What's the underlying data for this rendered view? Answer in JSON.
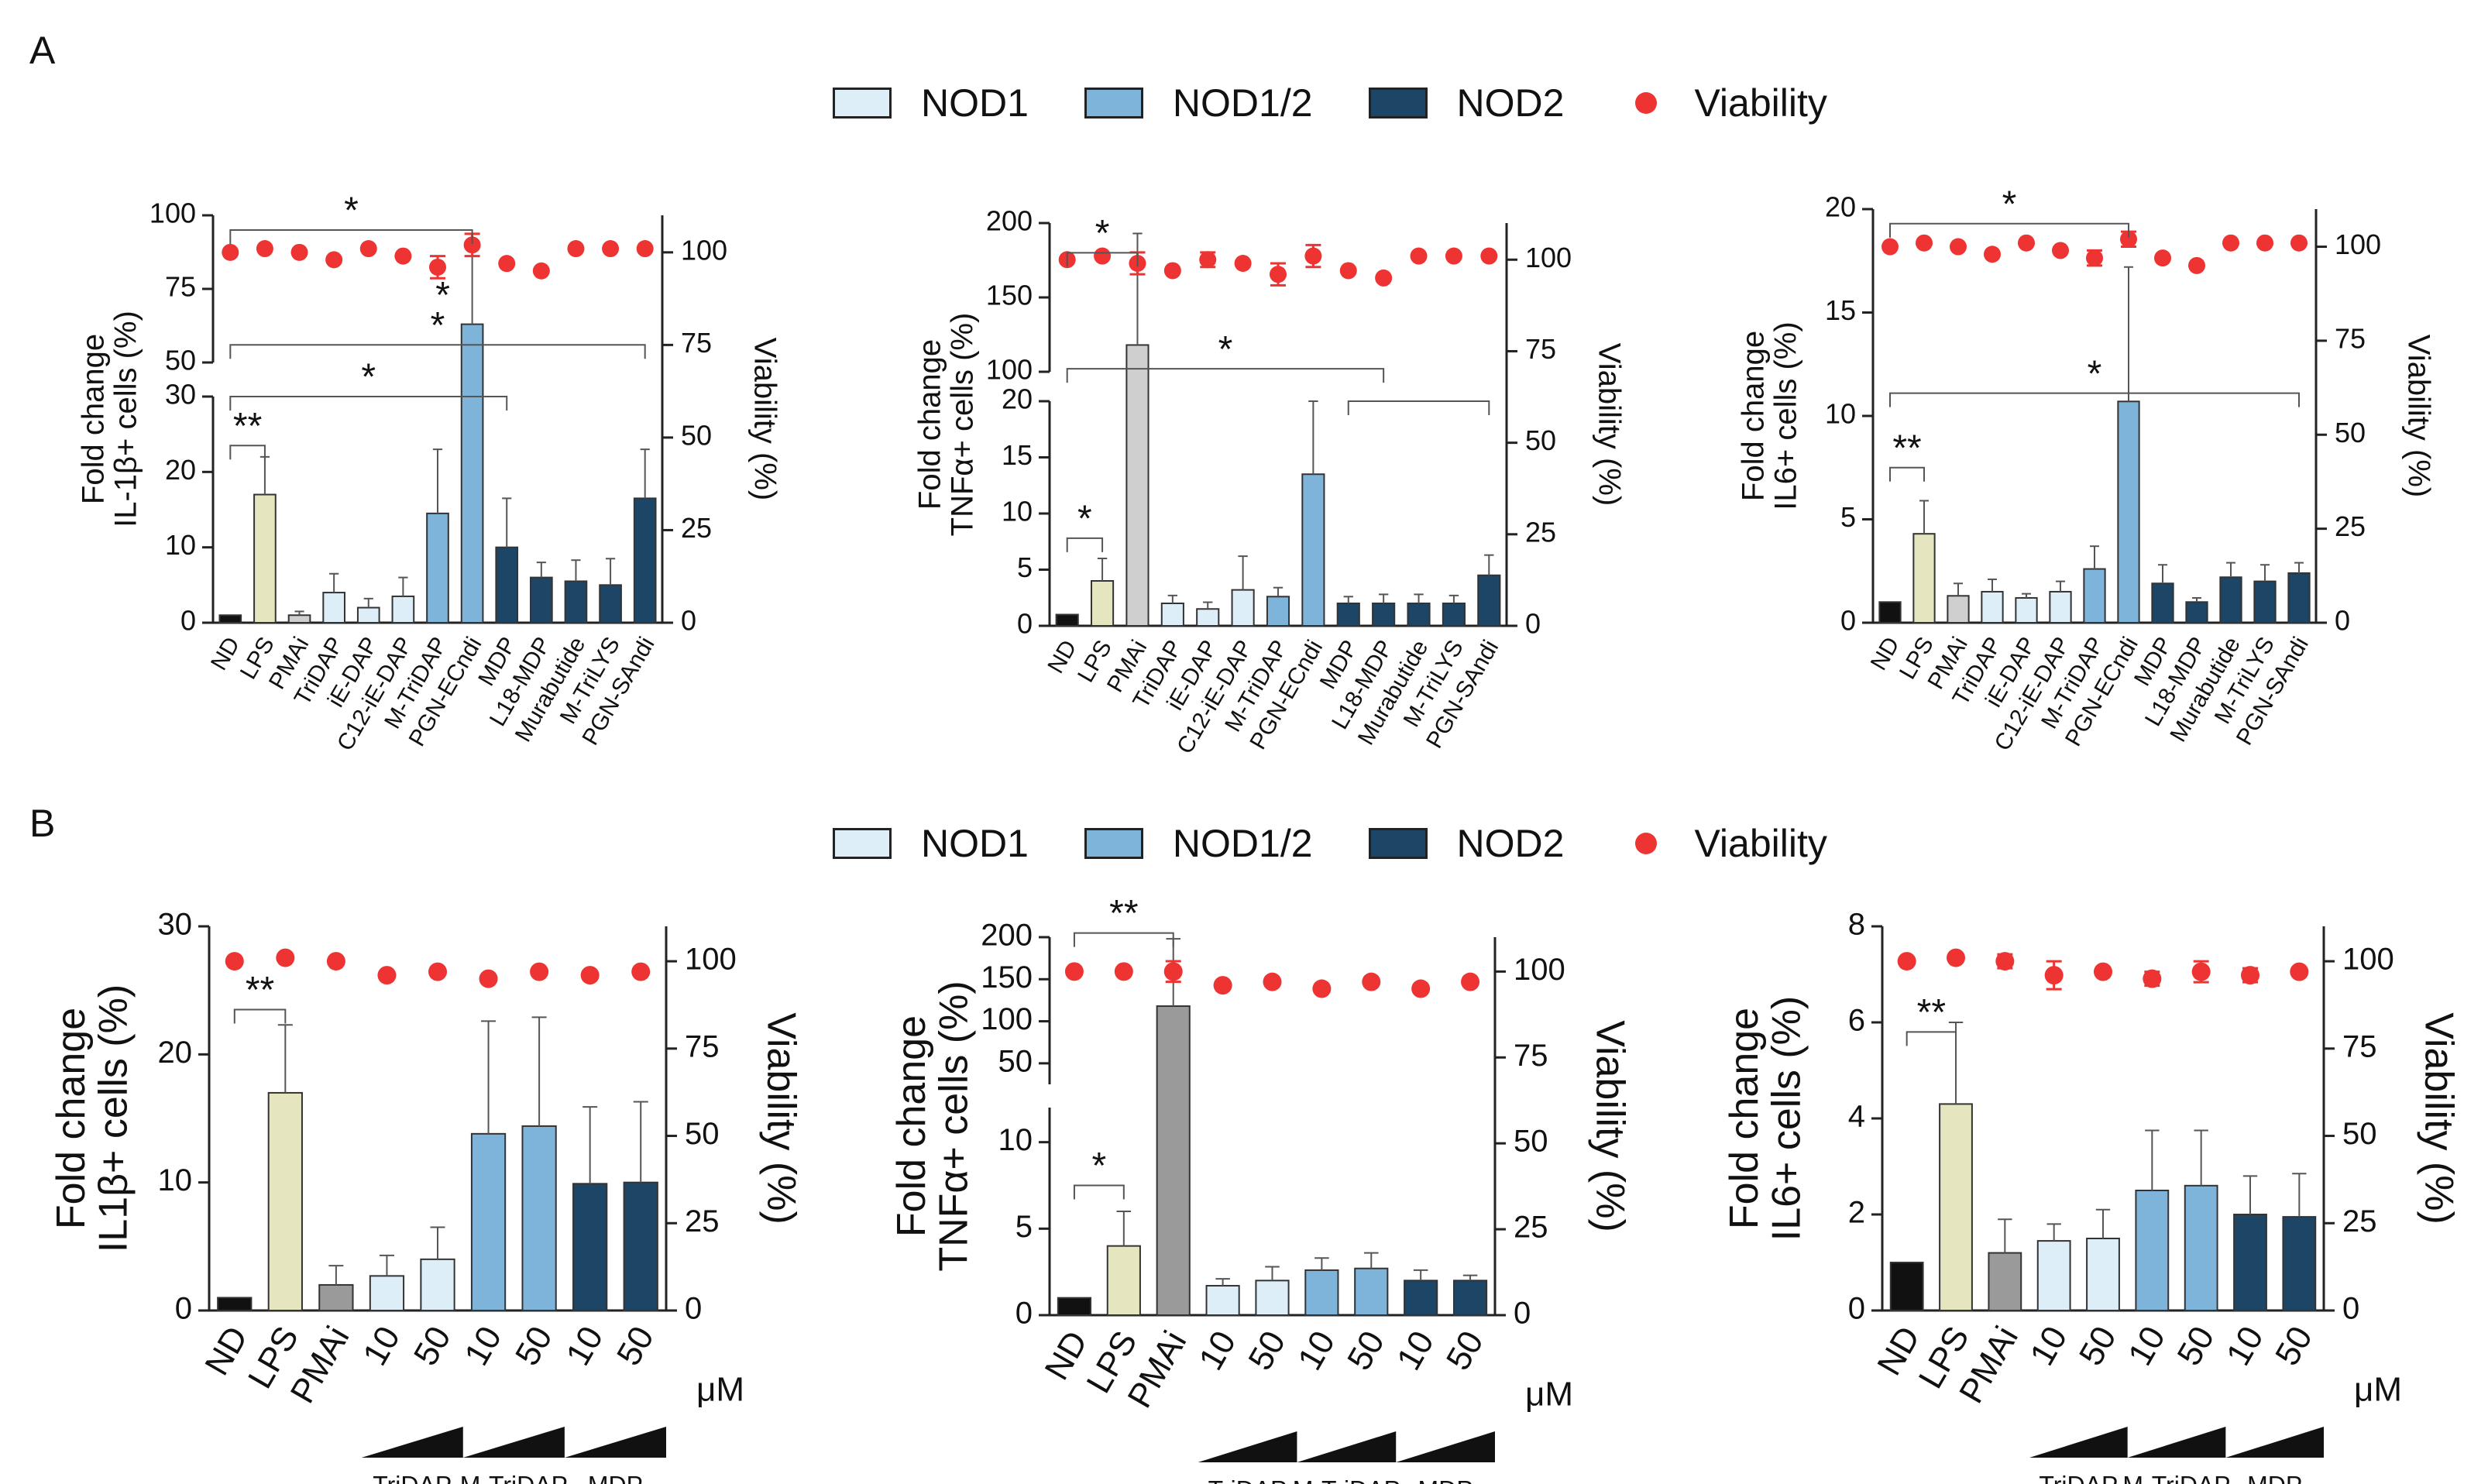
{
  "panels": [
    {
      "label": "A"
    },
    {
      "label": "B"
    }
  ],
  "legend": {
    "items": [
      {
        "name": "NOD1",
        "color": "#ddeef8"
      },
      {
        "name": "NOD1/2",
        "color": "#7fb4da"
      },
      {
        "name": "NOD2",
        "color": "#1d4566"
      },
      {
        "name": "Viability",
        "color": "#ee3333",
        "dot": true
      }
    ]
  },
  "colors": {
    "ND": "#111111",
    "LPS": "#e5e6bf",
    "PMAi": "#cfcfcf",
    "PMAi_B": "#9a9a9a",
    "NOD1": "#ddeef8",
    "NOD12": "#7fb4da",
    "NOD2": "#1d4566",
    "viability": "#ee3333"
  },
  "chart_data": [
    {
      "id": "A1",
      "type": "bar",
      "panel": "A",
      "ylabel": [
        "Fold change",
        "IL-1β+ cells (%)"
      ],
      "y2label": "Viability (%)",
      "categories": [
        "ND",
        "LPS",
        "PMAi",
        "TriDAP",
        "iE-DAP",
        "C12-iE-DAP",
        "M-TriDAP",
        "PGN-ECndi",
        "MDP",
        "L18-MDP",
        "Murabutide",
        "M-TriLYS",
        "PGN-SAndi"
      ],
      "groups": [
        "ND",
        "LPS",
        "PMAi",
        "NOD1",
        "NOD1",
        "NOD1",
        "NOD12",
        "NOD12",
        "NOD2",
        "NOD2",
        "NOD2",
        "NOD2",
        "NOD2"
      ],
      "values": [
        1,
        17,
        1,
        4,
        2,
        3.5,
        14.5,
        63,
        10,
        6,
        5.5,
        5,
        16.5
      ],
      "errors": [
        0,
        5,
        0.5,
        2.5,
        1.2,
        2.5,
        8.5,
        25,
        6.5,
        2,
        2.8,
        3.5,
        6.5
      ],
      "viability": [
        100,
        101,
        100,
        98,
        101,
        99,
        96,
        102,
        97,
        95,
        101,
        101,
        101
      ],
      "viability_err": [
        0,
        0,
        0,
        0,
        0,
        0,
        3,
        3,
        0,
        0,
        0,
        0,
        0
      ],
      "break": {
        "lower_ylim": [
          0,
          30
        ],
        "upper_ylim": [
          50,
          100
        ],
        "lower_ticks": [
          0,
          10,
          20,
          30
        ],
        "upper_ticks": [
          50,
          75,
          100
        ]
      },
      "y2lim": [
        0,
        110
      ],
      "y2ticks": [
        0,
        25,
        50,
        75,
        100
      ],
      "significance": [
        {
          "from": 0,
          "to": 7,
          "label": "*",
          "axis": "upper",
          "y": 95
        },
        {
          "from": 0,
          "to": 12,
          "label": "*",
          "axis": "upper",
          "y": 56
        },
        {
          "from": 0,
          "to": 8,
          "label": "*",
          "axis": "lower",
          "y": 30
        },
        {
          "from": 0,
          "to": 1,
          "label": "**",
          "axis": "lower",
          "y": 23.5
        }
      ],
      "star_labels": [
        {
          "cat": 7,
          "label": "*",
          "axis": "upper",
          "y": 72
        }
      ]
    },
    {
      "id": "A2",
      "type": "bar",
      "panel": "A",
      "ylabel": [
        "Fold change",
        "TNFα+ cells (%)"
      ],
      "y2label": "Viability (%)",
      "categories": [
        "ND",
        "LPS",
        "PMAi",
        "TriDAP",
        "iE-DAP",
        "C12-iE-DAP",
        "M-TriDAP",
        "PGN-ECndi",
        "MDP",
        "L18-MDP",
        "Murabutide",
        "M-TriLYS",
        "PGN-SAndi"
      ],
      "groups": [
        "ND",
        "LPS",
        "PMAi",
        "NOD1",
        "NOD1",
        "NOD1",
        "NOD12",
        "NOD12",
        "NOD2",
        "NOD2",
        "NOD2",
        "NOD2",
        "NOD2"
      ],
      "values": [
        1,
        4,
        118,
        2,
        1.5,
        3.2,
        2.6,
        13.5,
        2,
        2,
        2,
        2,
        4.5
      ],
      "errors": [
        0,
        2,
        75,
        0.7,
        0.6,
        3,
        0.8,
        6.5,
        0.6,
        0.8,
        0.8,
        0.7,
        1.8
      ],
      "viability": [
        100,
        101,
        99,
        97,
        100,
        99,
        96,
        101,
        97,
        95,
        101,
        101,
        101
      ],
      "viability_err": [
        0,
        0,
        3,
        0,
        2,
        0,
        3,
        3,
        0,
        0,
        0,
        0,
        0
      ],
      "break": {
        "lower_ylim": [
          0,
          20
        ],
        "upper_ylim": [
          100,
          200
        ],
        "lower_ticks": [
          0,
          5,
          10,
          15,
          20
        ],
        "upper_ticks": [
          100,
          150,
          200
        ]
      },
      "y2lim": [
        0,
        110
      ],
      "y2ticks": [
        0,
        25,
        50,
        75,
        100
      ],
      "significance": [
        {
          "from": 0,
          "to": 2,
          "label": "*",
          "axis": "upper",
          "y": 180
        },
        {
          "from": 0,
          "to": 9,
          "label": "*",
          "axis": "upper",
          "y": 102
        },
        {
          "from": 8,
          "to": 12,
          "label": "",
          "axis": "lower",
          "y": 20
        },
        {
          "from": 0,
          "to": 1,
          "label": "*",
          "axis": "lower",
          "y": 7.8
        }
      ]
    },
    {
      "id": "A3",
      "type": "bar",
      "panel": "A",
      "ylabel": [
        "Fold change",
        "IL6+ cells (%)"
      ],
      "y2label": "Viability (%)",
      "categories": [
        "ND",
        "LPS",
        "PMAi",
        "TriDAP",
        "iE-DAP",
        "C12-iE-DAP",
        "M-TriDAP",
        "PGN-ECndi",
        "MDP",
        "L18-MDP",
        "Murabutide",
        "M-TriLYS",
        "PGN-SAndi"
      ],
      "groups": [
        "ND",
        "LPS",
        "PMAi",
        "NOD1",
        "NOD1",
        "NOD1",
        "NOD12",
        "NOD12",
        "NOD2",
        "NOD2",
        "NOD2",
        "NOD2",
        "NOD2"
      ],
      "values": [
        1,
        4.3,
        1.3,
        1.5,
        1.2,
        1.5,
        2.6,
        10.7,
        1.9,
        1,
        2.2,
        2,
        2.4
      ],
      "errors": [
        0,
        1.6,
        0.6,
        0.6,
        0.2,
        0.5,
        1.1,
        6.5,
        0.9,
        0.2,
        0.7,
        0.8,
        0.5
      ],
      "viability": [
        100,
        101,
        100,
        98,
        101,
        99,
        97,
        102,
        97,
        95,
        101,
        101,
        101
      ],
      "viability_err": [
        0,
        0,
        0,
        0,
        0,
        0,
        2,
        2,
        0,
        0,
        0,
        0,
        0
      ],
      "ylim": [
        0,
        20
      ],
      "yticks": [
        0,
        5,
        10,
        15,
        20
      ],
      "y2lim": [
        0,
        110
      ],
      "y2ticks": [
        0,
        25,
        50,
        75,
        100
      ],
      "significance": [
        {
          "from": 0,
          "to": 7,
          "label": "*",
          "y": 19.3
        },
        {
          "from": 0,
          "to": 12,
          "label": "*",
          "y": 11.1
        },
        {
          "from": 0,
          "to": 1,
          "label": "**",
          "y": 7.5
        }
      ]
    },
    {
      "id": "B1",
      "type": "bar",
      "panel": "B",
      "ylabel": [
        "Fold change",
        "IL1β+ cells (%)"
      ],
      "y2label": "Viability (%)",
      "categories": [
        "ND",
        "LPS",
        "PMAi",
        "10",
        "50",
        "10",
        "50",
        "10",
        "50"
      ],
      "groups": [
        "ND",
        "LPS",
        "PMAi_B",
        "NOD1",
        "NOD1",
        "NOD12",
        "NOD12",
        "NOD2",
        "NOD2"
      ],
      "values": [
        1,
        17,
        2,
        2.7,
        4,
        13.8,
        14.4,
        9.9,
        10
      ],
      "errors": [
        0,
        5.3,
        1.5,
        1.6,
        2.5,
        8.8,
        8.5,
        6,
        6.3
      ],
      "viability": [
        100,
        101,
        100,
        96,
        97,
        95,
        97,
        96,
        97
      ],
      "viability_err": [
        0,
        0,
        0,
        0,
        0,
        0,
        0,
        0,
        0
      ],
      "ylim": [
        0,
        30
      ],
      "yticks": [
        0,
        10,
        20,
        30
      ],
      "y2lim": [
        0,
        110
      ],
      "y2ticks": [
        0,
        25,
        50,
        75,
        100
      ],
      "significance": [
        {
          "from": 0,
          "to": 1,
          "label": "**",
          "y": 23.5
        }
      ],
      "dose_groups": [
        "TriDAP",
        "M-TriDAP",
        "MDP"
      ],
      "unit": "μM"
    },
    {
      "id": "B2",
      "type": "bar",
      "panel": "B",
      "ylabel": [
        "Fold change",
        "TNFα+ cells (%)"
      ],
      "y2label": "Viability (%)",
      "categories": [
        "ND",
        "LPS",
        "PMAi",
        "10",
        "50",
        "10",
        "50",
        "10",
        "50"
      ],
      "groups": [
        "ND",
        "LPS",
        "PMAi_B",
        "NOD1",
        "NOD1",
        "NOD12",
        "NOD12",
        "NOD2",
        "NOD2"
      ],
      "values": [
        1,
        4,
        118,
        1.7,
        2,
        2.6,
        2.7,
        2,
        2
      ],
      "errors": [
        0,
        2,
        80,
        0.4,
        0.8,
        0.7,
        0.9,
        0.6,
        0.3
      ],
      "viability": [
        100,
        100,
        100,
        96,
        97,
        95,
        97,
        95,
        97
      ],
      "viability_err": [
        0,
        0,
        3,
        0,
        0,
        0,
        0,
        0,
        0
      ],
      "break": {
        "lower_ylim": [
          0,
          12
        ],
        "upper_ylim": [
          25,
          200
        ],
        "lower_ticks": [
          0,
          5,
          10
        ],
        "upper_ticks": [
          50,
          100,
          150,
          200
        ]
      },
      "y2lim": [
        0,
        110
      ],
      "y2ticks": [
        0,
        25,
        50,
        75,
        100
      ],
      "significance": [
        {
          "from": 0,
          "to": 2,
          "label": "**",
          "axis": "upper",
          "y": 205
        },
        {
          "from": 0,
          "to": 1,
          "label": "*",
          "axis": "lower",
          "y": 7.5
        }
      ],
      "dose_groups": [
        "TriDAP",
        "M-TriDAP",
        "MDP"
      ],
      "unit": "μM"
    },
    {
      "id": "B3",
      "type": "bar",
      "panel": "B",
      "ylabel": [
        "Fold change",
        "IL6+ cells (%)"
      ],
      "y2label": "Viability (%)",
      "categories": [
        "ND",
        "LPS",
        "PMAi",
        "10",
        "50",
        "10",
        "50",
        "10",
        "50"
      ],
      "groups": [
        "ND",
        "LPS",
        "PMAi_B",
        "NOD1",
        "NOD1",
        "NOD12",
        "NOD12",
        "NOD2",
        "NOD2"
      ],
      "values": [
        1,
        4.3,
        1.2,
        1.45,
        1.5,
        2.5,
        2.6,
        2,
        1.95
      ],
      "errors": [
        0,
        1.7,
        0.7,
        0.35,
        0.6,
        1.25,
        1.15,
        0.8,
        0.9
      ],
      "viability": [
        100,
        101,
        100,
        96,
        97,
        95,
        97,
        96,
        97
      ],
      "viability_err": [
        0,
        0,
        2,
        4,
        0,
        2,
        3,
        2,
        0
      ],
      "ylim": [
        0,
        8
      ],
      "yticks": [
        0,
        2,
        4,
        6,
        8
      ],
      "y2lim": [
        0,
        110
      ],
      "y2ticks": [
        0,
        25,
        50,
        75,
        100
      ],
      "significance": [
        {
          "from": 0,
          "to": 1,
          "label": "**",
          "y": 5.8
        }
      ],
      "dose_groups": [
        "TriDAP",
        "M-TriDAP",
        "MDP"
      ],
      "unit": "μM"
    }
  ]
}
